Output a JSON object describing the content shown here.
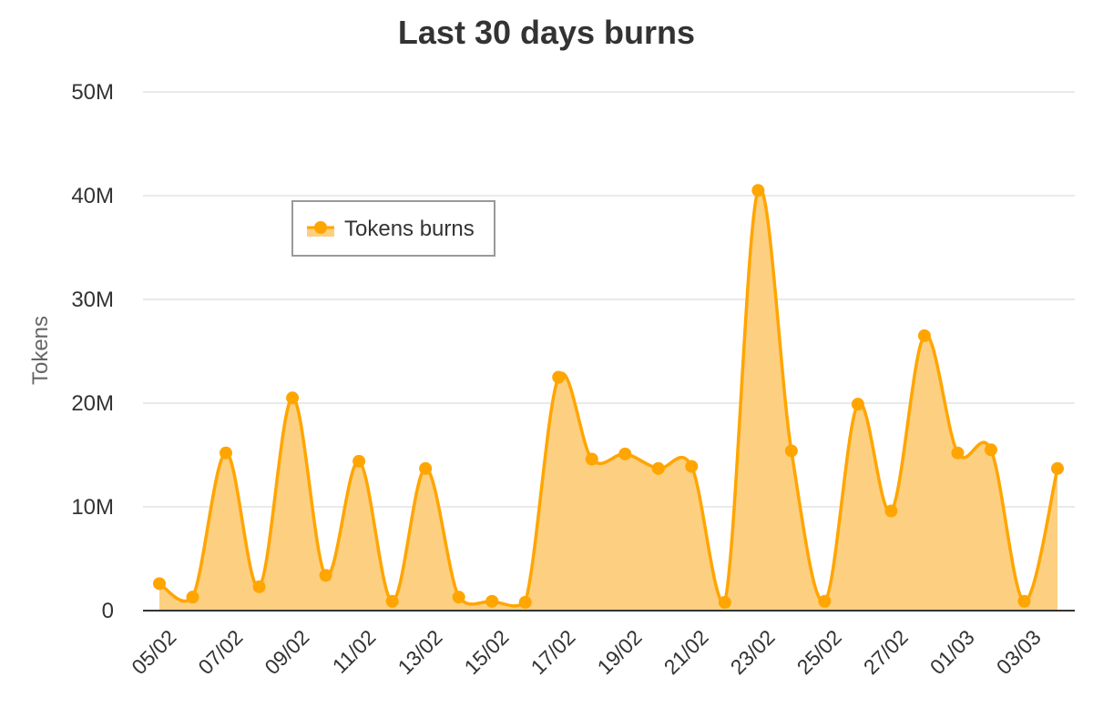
{
  "chart_data": {
    "type": "area",
    "title": "Last 30 days burns",
    "ylabel": "Tokens",
    "xlabel": "",
    "ylim": [
      0,
      50000000
    ],
    "yticks": [
      {
        "value": 0,
        "label": "0"
      },
      {
        "value": 10000000,
        "label": "10M"
      },
      {
        "value": 20000000,
        "label": "20M"
      },
      {
        "value": 30000000,
        "label": "30M"
      },
      {
        "value": 40000000,
        "label": "40M"
      },
      {
        "value": 50000000,
        "label": "50M"
      }
    ],
    "grid": true,
    "legend_position": "top-left",
    "categories": [
      "05/02",
      "06/02",
      "07/02",
      "08/02",
      "09/02",
      "10/02",
      "11/02",
      "12/02",
      "13/02",
      "14/02",
      "15/02",
      "16/02",
      "17/02",
      "18/02",
      "19/02",
      "20/02",
      "21/02",
      "22/02",
      "23/02",
      "24/02",
      "25/02",
      "26/02",
      "27/02",
      "28/02",
      "01/03",
      "02/03",
      "03/03",
      "04/03"
    ],
    "xtick_labels": [
      "05/02",
      "07/02",
      "09/02",
      "11/02",
      "13/02",
      "15/02",
      "17/02",
      "19/02",
      "21/02",
      "23/02",
      "25/02",
      "27/02",
      "01/03",
      "03/03"
    ],
    "series": [
      {
        "name": "Tokens burns",
        "color": "#FFA500",
        "fill": "#FDCF80",
        "values": [
          2600000,
          1300000,
          15200000,
          2300000,
          20500000,
          3400000,
          14400000,
          900000,
          13700000,
          1300000,
          900000,
          800000,
          22500000,
          14600000,
          15100000,
          13700000,
          13900000,
          800000,
          40500000,
          15400000,
          900000,
          19900000,
          9600000,
          26500000,
          15200000,
          15500000,
          900000,
          13700000
        ]
      }
    ]
  }
}
